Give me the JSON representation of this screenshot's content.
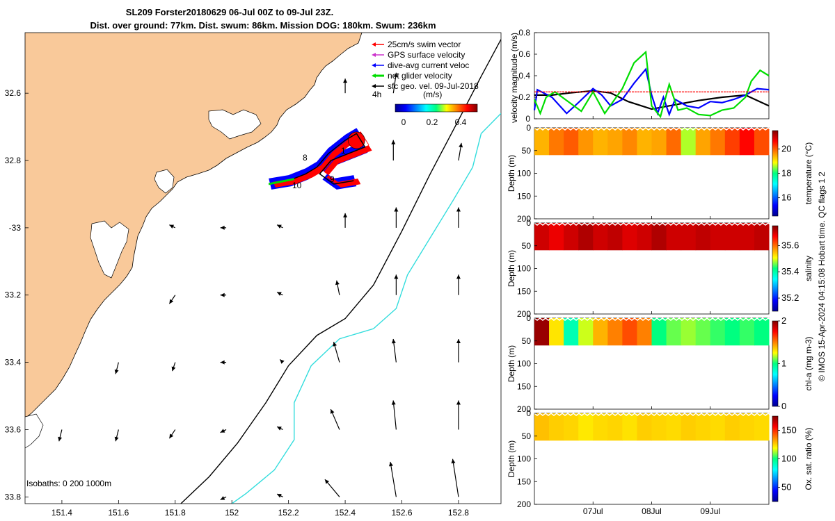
{
  "title": {
    "line1": "SL209 Forster20180629 06-Jul 00Z to 09-Jul 23Z.",
    "line2": "Dist. over ground: 77km. Dist. swum: 86km. Mission DOG: 180km. Swum: 236km"
  },
  "colors": {
    "land": "#f9c99a",
    "swim": "#ff0000",
    "gps": "#cc33cc",
    "dive_avg": "#0000ff",
    "net": "#00dd00",
    "sfc": "#000000",
    "isobath_200": "#000000",
    "isobath_1000": "#33dddd"
  },
  "map": {
    "isobath_text": "Isobaths: 0   200  1000m",
    "time_label": "4h",
    "speed_colorbar": {
      "unit": "(m/s)",
      "ticks": [
        "0",
        "0.2",
        "0.4"
      ],
      "range": [
        0,
        0.5
      ]
    },
    "track_labels": [
      "1",
      "8",
      "9",
      "10"
    ],
    "legend": [
      {
        "label": "25cm/s swim vector",
        "color": "#ff0000"
      },
      {
        "label": "GPS surface velocity",
        "color": "#cc33cc"
      },
      {
        "label": "dive-avg current veloc",
        "color": "#0000ff"
      },
      {
        "label": "net glider velocity",
        "color": "#00dd00"
      },
      {
        "label": "sfc geo. vel. 09-Jul-2018",
        "color": "#000000"
      }
    ]
  },
  "side": {
    "xticks": [
      "07Jul",
      "08Jul",
      "09Jul"
    ],
    "footer": "© IMOS 15-Apr-2024 04:15:08 Hobart time. QC flags 1  2"
  },
  "chart_data": [
    {
      "type": "line",
      "name": "map",
      "x_ticks": [
        151.4,
        151.6,
        151.8,
        152,
        152.2,
        152.4,
        152.6,
        152.8
      ],
      "x_tick_labels": [
        "151.4",
        "151.6",
        "151.8",
        "152",
        "152.2",
        "152.4",
        "152.6",
        "152.8"
      ],
      "y_ticks": [
        -32.6,
        -32.8,
        -33,
        -33.2,
        -33.4,
        -33.6,
        -33.8
      ],
      "y_tick_labels": [
        "32.6",
        "32.8",
        "-33",
        "33.2",
        "33.4",
        "33.6",
        "33.8"
      ],
      "xlim": [
        151.27,
        152.95
      ],
      "ylim": [
        -33.82,
        -32.42
      ],
      "isobath_200": [
        [
          152.95,
          -32.44
        ],
        [
          152.88,
          -32.55
        ],
        [
          152.8,
          -32.68
        ],
        [
          152.7,
          -32.84
        ],
        [
          152.6,
          -33.01
        ],
        [
          152.5,
          -33.17
        ],
        [
          152.4,
          -33.27
        ],
        [
          152.3,
          -33.32
        ],
        [
          152.2,
          -33.41
        ],
        [
          152.12,
          -33.52
        ],
        [
          152.02,
          -33.64
        ],
        [
          151.92,
          -33.74
        ],
        [
          151.82,
          -33.82
        ]
      ],
      "isobath_1000": [
        [
          152.95,
          -32.66
        ],
        [
          152.88,
          -32.72
        ],
        [
          152.85,
          -32.82
        ],
        [
          152.78,
          -32.92
        ],
        [
          152.7,
          -33.03
        ],
        [
          152.62,
          -33.14
        ],
        [
          152.58,
          -33.24
        ],
        [
          152.5,
          -33.3
        ],
        [
          152.38,
          -33.33
        ],
        [
          152.28,
          -33.41
        ],
        [
          152.22,
          -33.52
        ],
        [
          152.22,
          -33.63
        ],
        [
          152.15,
          -33.72
        ],
        [
          152.05,
          -33.79
        ],
        [
          152.0,
          -33.82
        ]
      ],
      "glider_track": [
        [
          152.13,
          -32.87
        ],
        [
          152.2,
          -32.86
        ],
        [
          152.26,
          -32.84
        ],
        [
          152.3,
          -32.82
        ],
        [
          152.34,
          -32.78
        ],
        [
          152.4,
          -32.74
        ],
        [
          152.44,
          -32.72
        ],
        [
          152.47,
          -32.76
        ],
        [
          152.41,
          -32.78
        ],
        [
          152.35,
          -32.8
        ],
        [
          152.31,
          -32.84
        ],
        [
          152.36,
          -32.87
        ],
        [
          152.43,
          -32.86
        ]
      ],
      "sfc_velocity": [
        {
          "lon": 152.4,
          "lat": -32.6,
          "u": 0,
          "v": 0.05
        },
        {
          "lon": 152.57,
          "lat": -32.6,
          "u": 0.01,
          "v": 0.07
        },
        {
          "lon": 152.57,
          "lat": -32.8,
          "u": 0,
          "v": 0.07
        },
        {
          "lon": 152.8,
          "lat": -32.8,
          "u": 0.01,
          "v": 0.06
        },
        {
          "lon": 151.8,
          "lat": -33.0,
          "u": -0.02,
          "v": 0.01
        },
        {
          "lon": 151.98,
          "lat": -33.0,
          "u": -0.02,
          "v": 0.0
        },
        {
          "lon": 152.18,
          "lat": -33.0,
          "u": -0.02,
          "v": 0.01
        },
        {
          "lon": 152.4,
          "lat": -33.0,
          "u": 0,
          "v": 0.05
        },
        {
          "lon": 152.58,
          "lat": -33.0,
          "u": 0,
          "v": 0.07
        },
        {
          "lon": 152.8,
          "lat": -33.0,
          "u": 0,
          "v": 0.07
        },
        {
          "lon": 151.8,
          "lat": -33.2,
          "u": -0.02,
          "v": -0.03
        },
        {
          "lon": 151.98,
          "lat": -33.2,
          "u": -0.02,
          "v": 0.0
        },
        {
          "lon": 152.18,
          "lat": -33.2,
          "u": -0.02,
          "v": 0.01
        },
        {
          "lon": 152.38,
          "lat": -33.2,
          "u": -0.01,
          "v": 0.05
        },
        {
          "lon": 152.58,
          "lat": -33.2,
          "u": 0,
          "v": 0.07
        },
        {
          "lon": 152.8,
          "lat": -33.2,
          "u": 0,
          "v": 0.07
        },
        {
          "lon": 151.6,
          "lat": -33.4,
          "u": -0.01,
          "v": -0.04
        },
        {
          "lon": 151.8,
          "lat": -33.4,
          "u": -0.01,
          "v": -0.03
        },
        {
          "lon": 151.98,
          "lat": -33.4,
          "u": -0.02,
          "v": 0.0
        },
        {
          "lon": 152.18,
          "lat": -33.4,
          "u": -0.01,
          "v": 0.01
        },
        {
          "lon": 152.38,
          "lat": -33.4,
          "u": -0.02,
          "v": 0.07
        },
        {
          "lon": 152.58,
          "lat": -33.4,
          "u": -0.01,
          "v": 0.08
        },
        {
          "lon": 152.8,
          "lat": -33.4,
          "u": 0,
          "v": 0.08
        },
        {
          "lon": 151.4,
          "lat": -33.6,
          "u": -0.01,
          "v": -0.04
        },
        {
          "lon": 151.6,
          "lat": -33.6,
          "u": -0.01,
          "v": -0.04
        },
        {
          "lon": 151.8,
          "lat": -33.6,
          "u": -0.02,
          "v": -0.03
        },
        {
          "lon": 151.98,
          "lat": -33.6,
          "u": -0.02,
          "v": -0.01
        },
        {
          "lon": 152.18,
          "lat": -33.6,
          "u": -0.02,
          "v": 0.01
        },
        {
          "lon": 152.38,
          "lat": -33.6,
          "u": -0.03,
          "v": 0.07
        },
        {
          "lon": 152.58,
          "lat": -33.6,
          "u": -0.01,
          "v": 0.1
        },
        {
          "lon": 152.8,
          "lat": -33.6,
          "u": 0,
          "v": 0.1
        },
        {
          "lon": 151.98,
          "lat": -33.8,
          "u": -0.02,
          "v": -0.01
        },
        {
          "lon": 152.18,
          "lat": -33.8,
          "u": -0.02,
          "v": 0.01
        },
        {
          "lon": 152.38,
          "lat": -33.8,
          "u": -0.05,
          "v": 0.06
        },
        {
          "lon": 152.58,
          "lat": -33.8,
          "u": -0.02,
          "v": 0.12
        },
        {
          "lon": 152.8,
          "lat": -33.8,
          "u": -0.02,
          "v": 0.13
        }
      ]
    },
    {
      "type": "line",
      "name": "velocity",
      "ylabel": "velocity magnitude (m/s)",
      "ylim": [
        0,
        0.8
      ],
      "y_ticks": [
        0,
        0.2,
        0.4,
        0.6,
        0.8
      ],
      "xlim": [
        6.0,
        10.0
      ],
      "x_ticks": [
        7,
        8,
        9
      ],
      "series": [
        {
          "color": "#000000",
          "x": [
            6.0,
            6.3,
            6.6,
            7.0,
            7.3,
            7.6,
            8.0,
            8.4,
            8.8,
            9.2,
            9.6,
            10.0
          ],
          "y": [
            0.22,
            0.22,
            0.24,
            0.26,
            0.24,
            0.16,
            0.09,
            0.13,
            0.17,
            0.2,
            0.22,
            0.12
          ]
        },
        {
          "color": "#0000ff",
          "x": [
            6.0,
            6.05,
            6.3,
            6.55,
            6.75,
            7.0,
            7.15,
            7.3,
            7.5,
            7.7,
            7.9,
            8.0,
            8.1,
            8.2,
            8.3,
            8.4,
            8.6,
            8.8,
            9.0,
            9.2,
            9.4,
            9.6,
            9.8,
            10.0
          ],
          "y": [
            0.08,
            0.27,
            0.2,
            0.05,
            0.15,
            0.28,
            0.22,
            0.12,
            0.18,
            0.33,
            0.46,
            0.22,
            0.05,
            0.2,
            0.04,
            0.18,
            0.12,
            0.1,
            0.16,
            0.15,
            0.18,
            0.22,
            0.28,
            0.27
          ]
        },
        {
          "color": "#00dd00",
          "x": [
            6.0,
            6.1,
            6.2,
            6.35,
            6.6,
            6.8,
            7.0,
            7.2,
            7.5,
            7.7,
            7.9,
            8.0,
            8.15,
            8.3,
            8.45,
            8.6,
            8.8,
            9.0,
            9.2,
            9.4,
            9.6,
            9.7,
            9.85,
            10.0
          ],
          "y": [
            0.18,
            0.05,
            0.2,
            0.25,
            0.15,
            0.07,
            0.25,
            0.05,
            0.28,
            0.52,
            0.62,
            0.12,
            0.02,
            0.32,
            0.08,
            0.1,
            0.04,
            0.03,
            0.08,
            0.1,
            0.2,
            0.35,
            0.45,
            0.4
          ]
        },
        {
          "color": "#ff0000",
          "x": [
            6.0,
            10.0
          ],
          "y": [
            0.25,
            0.25
          ]
        }
      ]
    },
    {
      "type": "heatmap",
      "name": "temperature",
      "ylabel": "Depth (m)",
      "ylim": [
        0,
        200
      ],
      "colorbar_label": "temperature (°C)",
      "colorbar_range": [
        14.5,
        21.5
      ],
      "colorbar_ticks": [
        "16",
        "18",
        "20"
      ],
      "max_depth": 60,
      "x": [
        6.0,
        6.25,
        6.5,
        6.75,
        7.0,
        7.25,
        7.5,
        7.75,
        8.0,
        8.25,
        8.5,
        8.75,
        9.0,
        9.25,
        9.5,
        9.75,
        10.0
      ],
      "values": [
        19.4,
        19.8,
        20.0,
        19.6,
        19.4,
        19.5,
        19.7,
        19.4,
        19.5,
        19.9,
        18.6,
        19.5,
        19.8,
        20.2,
        20.6,
        20.1,
        19.7
      ]
    },
    {
      "type": "heatmap",
      "name": "salinity",
      "ylabel": "Depth (m)",
      "ylim": [
        0,
        200
      ],
      "colorbar_label": "salinity",
      "colorbar_range": [
        35.1,
        35.75
      ],
      "colorbar_ticks": [
        "35.2",
        "35.4",
        "35.6"
      ],
      "max_depth": 60,
      "x": [
        6.0,
        6.25,
        6.5,
        6.75,
        7.0,
        7.25,
        7.5,
        7.75,
        8.0,
        8.25,
        8.5,
        8.75,
        9.0,
        9.25,
        9.5,
        9.75,
        10.0
      ],
      "values": [
        35.7,
        35.68,
        35.7,
        35.72,
        35.7,
        35.71,
        35.69,
        35.7,
        35.72,
        35.7,
        35.7,
        35.71,
        35.7,
        35.7,
        35.7,
        35.71,
        35.7
      ]
    },
    {
      "type": "heatmap",
      "name": "chl-a",
      "ylabel": "Depth (m)",
      "ylim": [
        0,
        200
      ],
      "colorbar_label": "chl-a (mg m-3)",
      "colorbar_range": [
        0,
        2
      ],
      "colorbar_ticks": [
        "0",
        "1",
        "2"
      ],
      "max_depth": 60,
      "x": [
        6.0,
        6.25,
        6.5,
        6.75,
        7.0,
        7.25,
        7.5,
        7.75,
        8.0,
        8.25,
        8.5,
        8.75,
        9.0,
        9.25,
        9.5,
        9.75,
        10.0
      ],
      "values": [
        1.95,
        1.3,
        0.9,
        1.2,
        1.4,
        1.5,
        1.6,
        1.5,
        1.0,
        1.1,
        1.15,
        1.1,
        1.05,
        1.0,
        1.05,
        1.0,
        1.0
      ]
    },
    {
      "type": "heatmap",
      "name": "oxygen",
      "ylabel": "Depth (m)",
      "ylim": [
        0,
        200
      ],
      "colorbar_label": "Ox. sat. ratio (%)",
      "colorbar_range": [
        25,
        175
      ],
      "colorbar_ticks": [
        "50",
        "100",
        "150"
      ],
      "max_depth": 60,
      "x": [
        6.0,
        6.25,
        6.5,
        6.75,
        7.0,
        7.25,
        7.5,
        7.75,
        8.0,
        8.25,
        8.5,
        8.75,
        9.0,
        9.25,
        9.5,
        9.75,
        10.0
      ],
      "values": [
        128,
        126,
        125,
        122,
        124,
        125,
        123,
        126,
        125,
        124,
        126,
        125,
        124,
        126,
        125,
        124,
        125
      ]
    }
  ]
}
